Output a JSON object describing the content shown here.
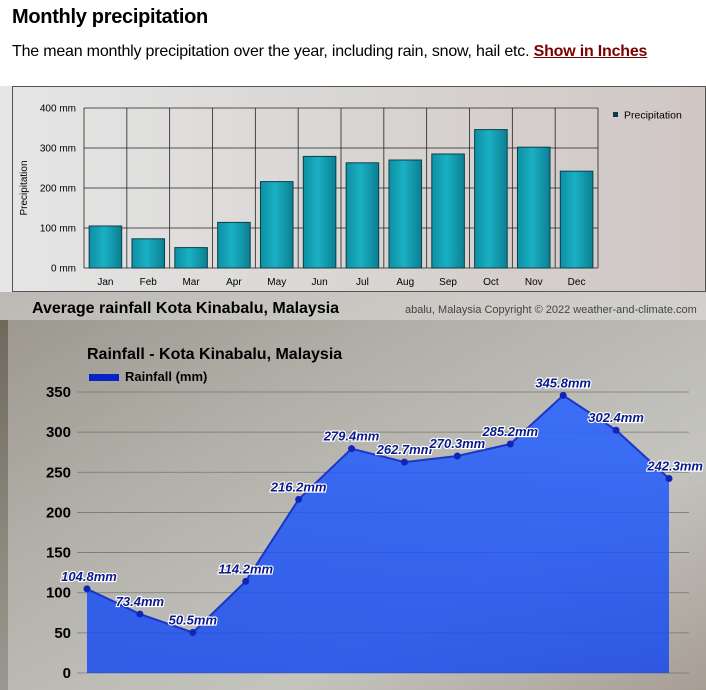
{
  "header": {
    "title": "Monthly precipitation",
    "description": "The mean monthly precipitation over the year, including rain, snow, hail etc.",
    "link_label": "Show in Inches"
  },
  "colors": {
    "bar_fill": "#1ab0c4",
    "bar_stroke": "#0a3f4a",
    "area_fill": "#1448f0",
    "area_line": "#1a36c8",
    "label_text": "#0a1a8c"
  },
  "chart_data": [
    {
      "type": "bar",
      "title": "",
      "ylabel": "Precipitation",
      "ylim": [
        0,
        400
      ],
      "yticks": [
        "0 mm",
        "100 mm",
        "200 mm",
        "300 mm",
        "400 mm"
      ],
      "grid": true,
      "legend_position": "top-right",
      "categories": [
        "Jan",
        "Feb",
        "Mar",
        "Apr",
        "May",
        "Jun",
        "Jul",
        "Aug",
        "Sep",
        "Oct",
        "Nov",
        "Dec"
      ],
      "series": [
        {
          "name": "Precipitation",
          "values": [
            105,
            73,
            51,
            114,
            216,
            279,
            263,
            270,
            285,
            346,
            302,
            242
          ]
        }
      ]
    },
    {
      "type": "area",
      "title": "Rainfall - Kota Kinabalu, Malaysia",
      "section_title": "Average rainfall Kota Kinabalu, Malaysia",
      "watermark": "abalu, Malaysia   Copyright © 2022  weather-and-climate.com",
      "ylim": [
        0,
        350
      ],
      "yticks": [
        "0",
        "50",
        "100",
        "150",
        "200",
        "250",
        "300",
        "350"
      ],
      "legend_position": "top-left",
      "series": [
        {
          "name": "Rainfall (mm)",
          "values": [
            104.8,
            73.4,
            50.5,
            114.2,
            216.2,
            279.4,
            262.7,
            270.3,
            285.2,
            345.8,
            302.4,
            242.3
          ],
          "labels": [
            "104.8mm",
            "73.4mm",
            "50.5mm",
            "114.2mm",
            "216.2mm",
            "279.4mm",
            "262.7mm",
            "270.3mm",
            "285.2mm",
            "345.8mm",
            "302.4mm",
            "242.3mm"
          ]
        }
      ]
    }
  ]
}
